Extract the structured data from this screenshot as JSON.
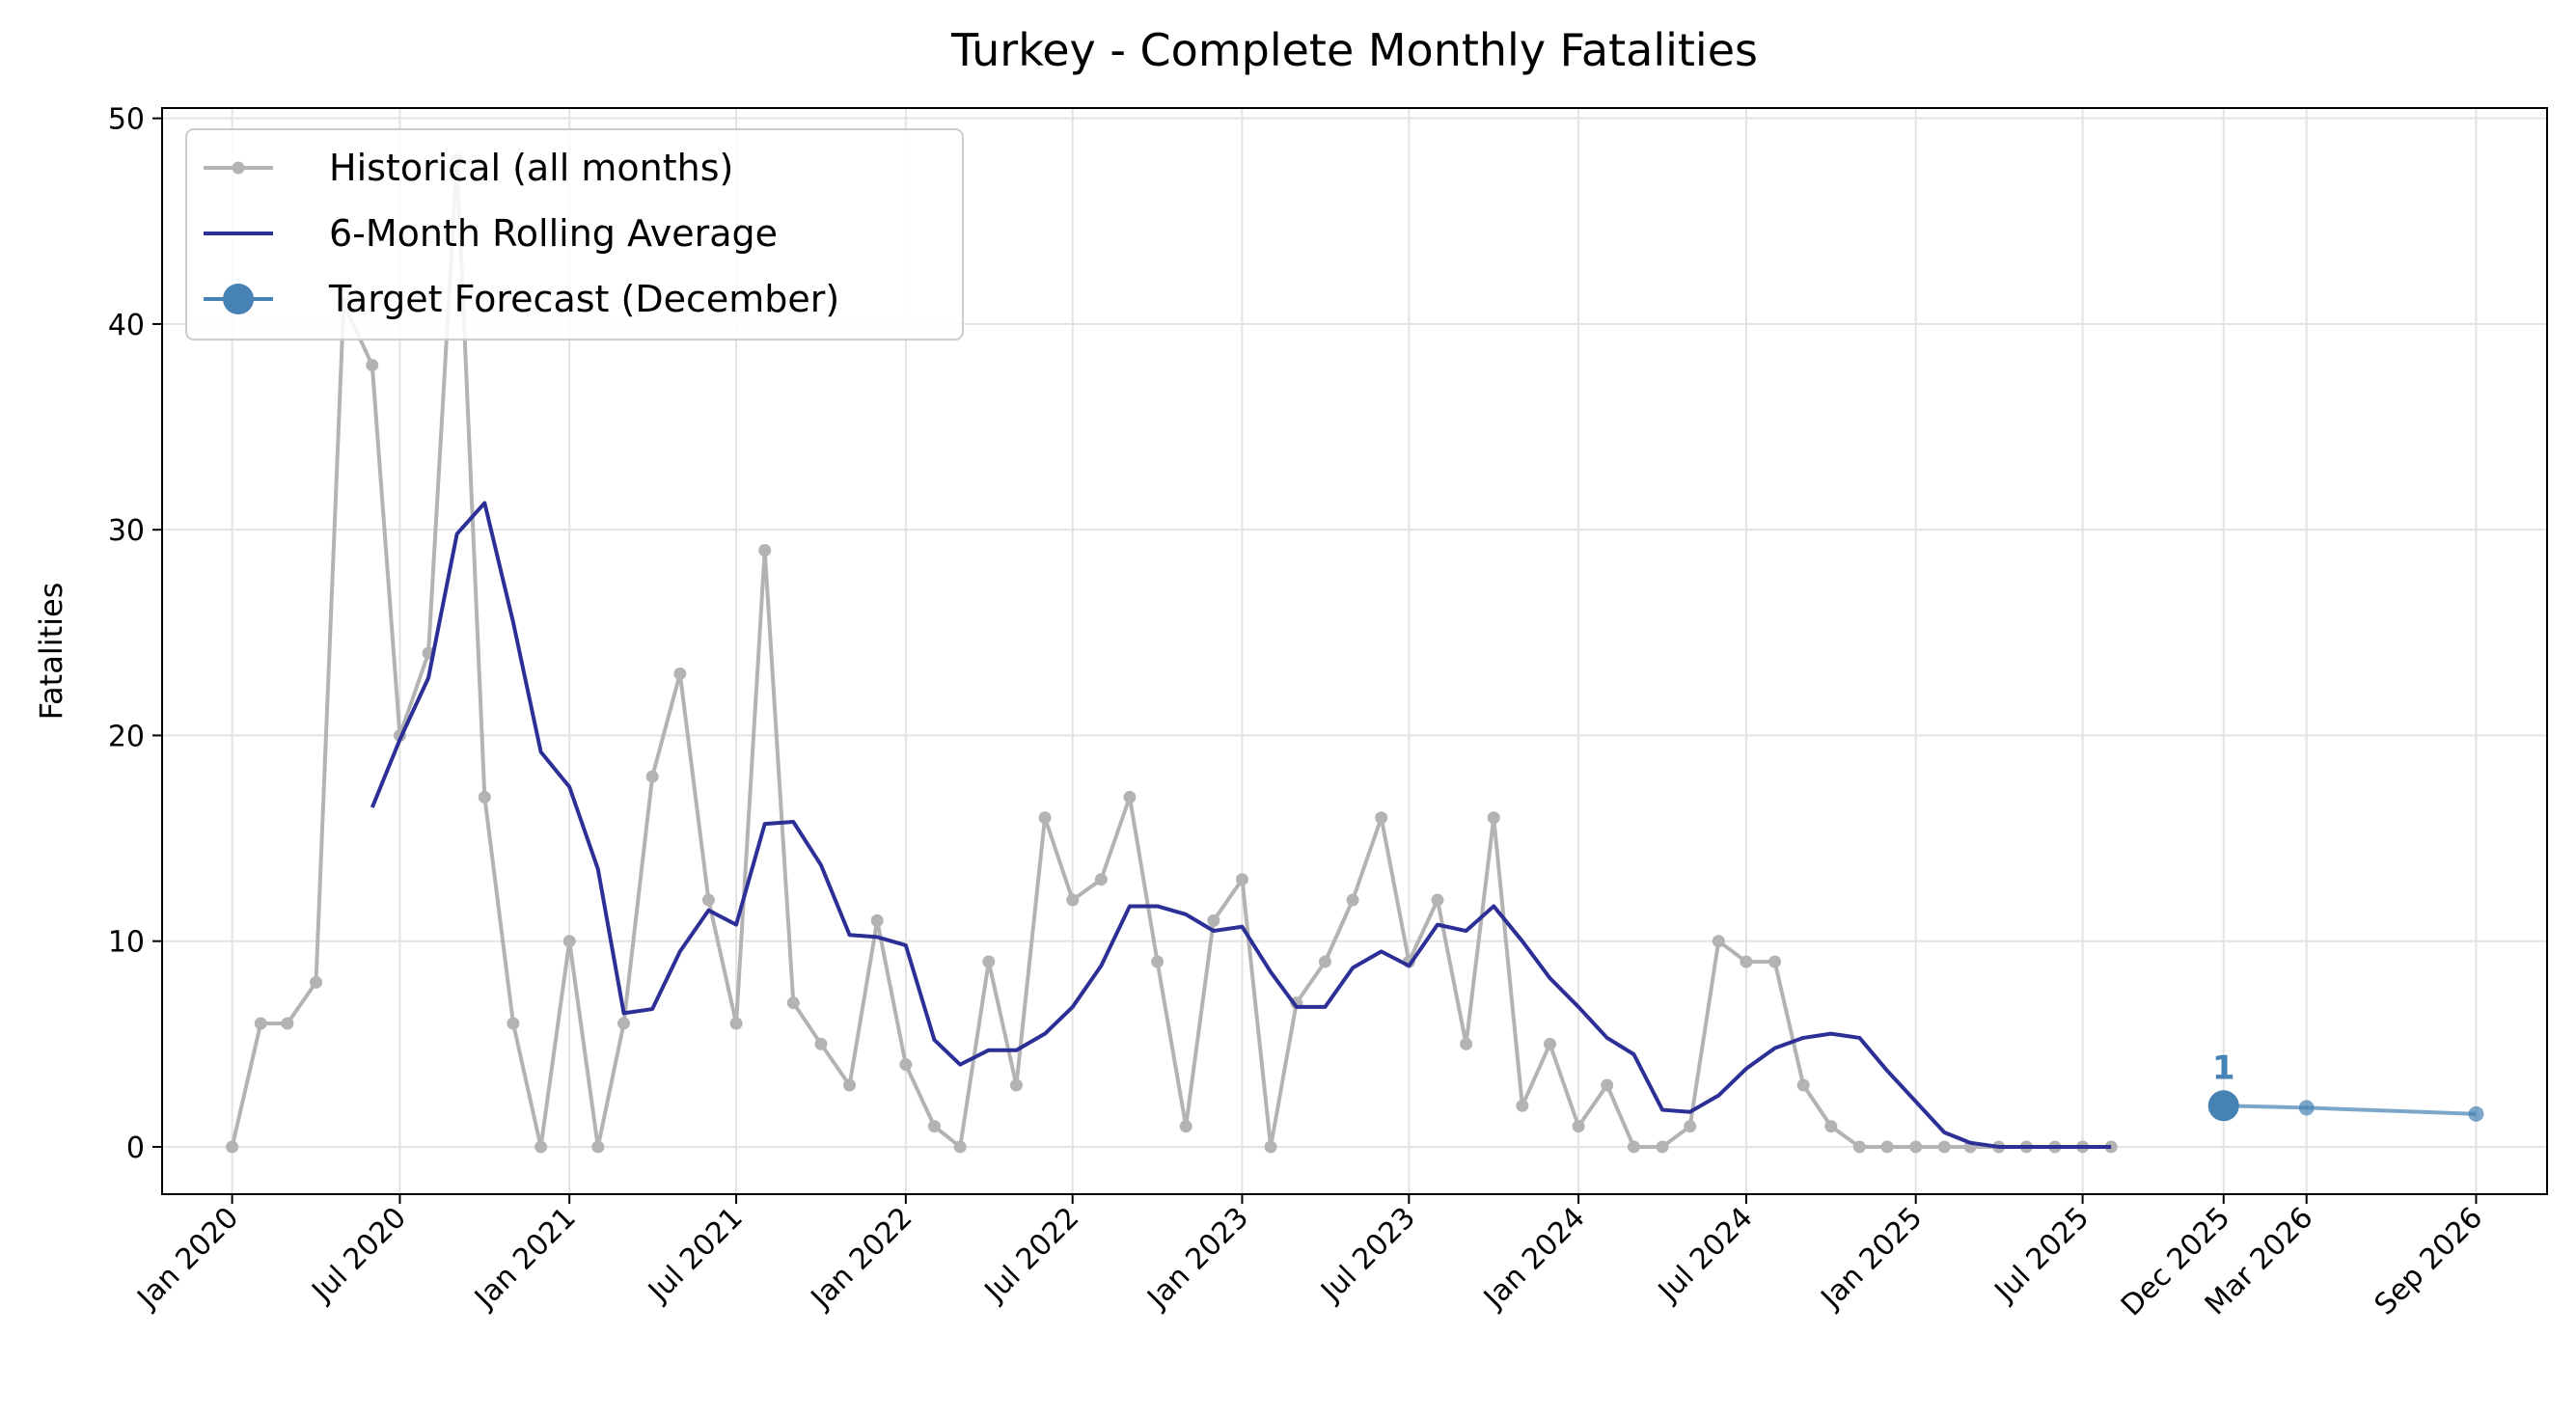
{
  "chart_data": {
    "type": "line",
    "title": "Turkey - Complete Monthly Fatalities",
    "xlabel": "",
    "ylabel": "Fatalities",
    "ylim": [
      -2.3,
      50.5
    ],
    "xlim": [
      "2019-10-17",
      "2026-11-17"
    ],
    "grid": true,
    "legend_position": "top-left",
    "x_ticks": [
      {
        "date": "2020-01-01",
        "label": "Jan 2020"
      },
      {
        "date": "2020-07-01",
        "label": "Jul 2020"
      },
      {
        "date": "2021-01-01",
        "label": "Jan 2021"
      },
      {
        "date": "2021-07-01",
        "label": "Jul 2021"
      },
      {
        "date": "2022-01-01",
        "label": "Jan 2022"
      },
      {
        "date": "2022-07-01",
        "label": "Jul 2022"
      },
      {
        "date": "2023-01-01",
        "label": "Jan 2023"
      },
      {
        "date": "2023-07-01",
        "label": "Jul 2023"
      },
      {
        "date": "2024-01-01",
        "label": "Jan 2024"
      },
      {
        "date": "2024-07-01",
        "label": "Jul 2024"
      },
      {
        "date": "2025-01-01",
        "label": "Jan 2025"
      },
      {
        "date": "2025-07-01",
        "label": "Jul 2025"
      },
      {
        "date": "2025-12-01",
        "label": "Dec 2025"
      },
      {
        "date": "2026-03-01",
        "label": "Mar 2026"
      },
      {
        "date": "2026-09-01",
        "label": "Sep 2026"
      }
    ],
    "y_ticks": [
      0,
      10,
      20,
      30,
      40,
      50
    ],
    "series": [
      {
        "name": "Historical (all months)",
        "color": "#b3b3b3",
        "marker": "small-circle",
        "x": [
          "2020-01",
          "2020-02",
          "2020-03",
          "2020-04",
          "2020-05",
          "2020-06",
          "2020-07",
          "2020-08",
          "2020-09",
          "2020-10",
          "2020-11",
          "2020-12",
          "2021-01",
          "2021-02",
          "2021-03",
          "2021-04",
          "2021-05",
          "2021-06",
          "2021-07",
          "2021-08",
          "2021-09",
          "2021-10",
          "2021-11",
          "2021-12",
          "2022-01",
          "2022-02",
          "2022-03",
          "2022-04",
          "2022-05",
          "2022-06",
          "2022-07",
          "2022-08",
          "2022-09",
          "2022-10",
          "2022-11",
          "2022-12",
          "2023-01",
          "2023-02",
          "2023-03",
          "2023-04",
          "2023-05",
          "2023-06",
          "2023-07",
          "2023-08",
          "2023-09",
          "2023-10",
          "2023-11",
          "2023-12",
          "2024-01",
          "2024-02",
          "2024-03",
          "2024-04",
          "2024-05",
          "2024-06",
          "2024-07",
          "2024-08",
          "2024-09",
          "2024-10",
          "2024-11",
          "2024-12",
          "2025-01",
          "2025-02",
          "2025-03",
          "2025-04",
          "2025-05",
          "2025-06",
          "2025-07",
          "2025-08"
        ],
        "values": [
          0,
          6,
          6,
          8,
          41,
          38,
          20,
          24,
          48,
          17,
          6,
          0,
          10,
          0,
          6,
          18,
          23,
          12,
          6,
          29,
          7,
          5,
          3,
          11,
          4,
          1,
          0,
          9,
          3,
          16,
          12,
          13,
          17,
          9,
          1,
          11,
          13,
          0,
          7,
          9,
          12,
          16,
          9,
          12,
          5,
          16,
          2,
          5,
          1,
          3,
          0,
          0,
          1,
          10,
          9,
          9,
          3,
          1,
          0,
          0,
          0,
          0,
          0,
          0,
          0,
          0,
          0,
          0
        ]
      },
      {
        "name": "6-Month Rolling Average",
        "color": "#2b2f96",
        "marker": "none",
        "x": [
          "2020-06",
          "2020-07",
          "2020-08",
          "2020-09",
          "2020-10",
          "2020-11",
          "2020-12",
          "2021-01",
          "2021-02",
          "2021-03",
          "2021-04",
          "2021-05",
          "2021-06",
          "2021-07",
          "2021-08",
          "2021-09",
          "2021-10",
          "2021-11",
          "2021-12",
          "2022-01",
          "2022-02",
          "2022-03",
          "2022-04",
          "2022-05",
          "2022-06",
          "2022-07",
          "2022-08",
          "2022-09",
          "2022-10",
          "2022-11",
          "2022-12",
          "2023-01",
          "2023-02",
          "2023-03",
          "2023-04",
          "2023-05",
          "2023-06",
          "2023-07",
          "2023-08",
          "2023-09",
          "2023-10",
          "2023-11",
          "2023-12",
          "2024-01",
          "2024-02",
          "2024-03",
          "2024-04",
          "2024-05",
          "2024-06",
          "2024-07",
          "2024-08",
          "2024-09",
          "2024-10",
          "2024-11",
          "2024-12",
          "2025-01",
          "2025-02",
          "2025-03",
          "2025-04",
          "2025-05",
          "2025-06",
          "2025-07",
          "2025-08"
        ],
        "values": [
          16.5,
          19.8,
          22.8,
          29.8,
          31.3,
          25.5,
          19.2,
          17.5,
          13.5,
          6.5,
          6.7,
          9.5,
          11.5,
          10.8,
          15.7,
          15.8,
          13.7,
          10.3,
          10.2,
          9.8,
          5.2,
          4.0,
          4.7,
          4.7,
          5.5,
          6.8,
          8.8,
          11.7,
          11.7,
          11.3,
          10.5,
          10.7,
          8.5,
          6.8,
          6.8,
          8.7,
          9.5,
          8.8,
          10.8,
          10.5,
          11.7,
          10.0,
          8.2,
          6.8,
          5.3,
          4.5,
          1.8,
          1.7,
          2.5,
          3.8,
          4.8,
          5.3,
          5.5,
          5.3,
          3.7,
          2.2,
          0.7,
          0.2,
          0.0,
          0.0,
          0.0,
          0.0,
          0.0
        ]
      },
      {
        "name": "Target Forecast (December)",
        "color": "#4682b4",
        "marker": "large-circle",
        "x": [
          "2025-12"
        ],
        "values": [
          2.0
        ]
      },
      {
        "name": "",
        "color": "#4682b4",
        "marker": "small-circle",
        "x": [
          "2025-12",
          "2026-03",
          "2026-09"
        ],
        "values": [
          2.0,
          1.9,
          1.6
        ]
      }
    ],
    "annotations": [
      {
        "text": "1",
        "x": "2025-12",
        "y": 2.0,
        "color": "#4682b4"
      }
    ]
  }
}
